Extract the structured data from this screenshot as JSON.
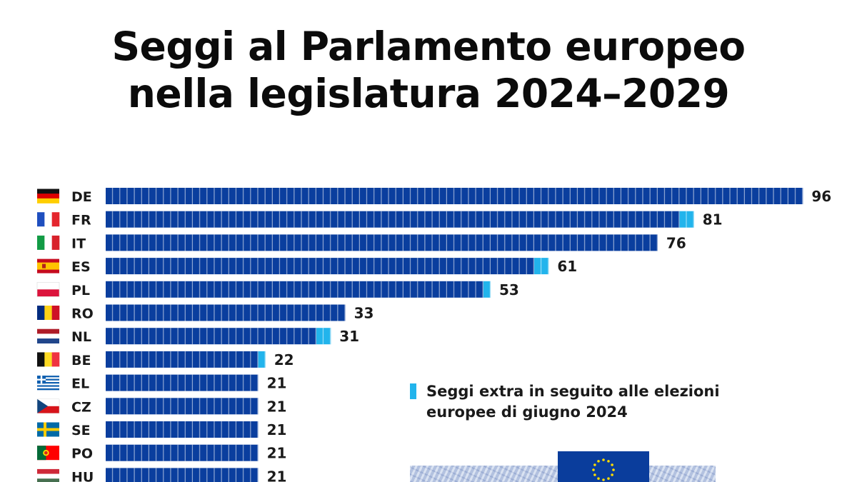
{
  "title_line1": "Seggi al Parlamento europeo",
  "title_line2": "nella legislatura 2024–2029",
  "legend": {
    "line1": "Seggi extra in seguito alle elezioni",
    "line2": "europee di giugno 2024",
    "color": "#22b4ec"
  },
  "colors": {
    "base": "#0a3e9e",
    "extra": "#22b4ec"
  },
  "chart_data": {
    "type": "bar",
    "orientation": "horizontal",
    "xlim": [
      0,
      96
    ],
    "categories": [
      "DE",
      "FR",
      "IT",
      "ES",
      "PL",
      "RO",
      "NL",
      "BE",
      "EL",
      "CZ",
      "SE",
      "PO",
      "HU"
    ],
    "flags": [
      "germany-flag-icon",
      "france-flag-icon",
      "italy-flag-icon",
      "spain-flag-icon",
      "poland-flag-icon",
      "romania-flag-icon",
      "netherlands-flag-icon",
      "belgium-flag-icon",
      "greece-flag-icon",
      "czechia-flag-icon",
      "sweden-flag-icon",
      "portugal-flag-icon",
      "hungary-flag-icon"
    ],
    "values": [
      96,
      81,
      76,
      61,
      53,
      33,
      31,
      22,
      21,
      21,
      21,
      21,
      21
    ],
    "extra_seats": [
      0,
      2,
      0,
      2,
      1,
      0,
      2,
      1,
      0,
      0,
      0,
      0,
      0
    ]
  }
}
